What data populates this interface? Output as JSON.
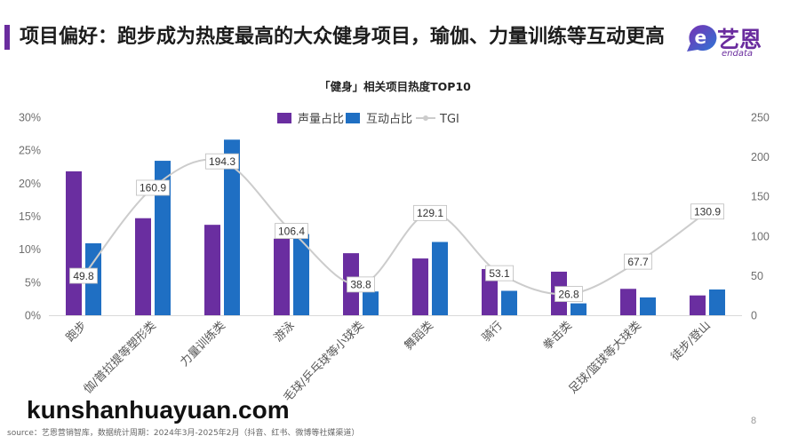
{
  "header": {
    "title": "项目偏好：跑步成为热度最高的大众健身项目，瑜伽、力量训练等互动更高",
    "accent_color": "#6a2c9e"
  },
  "logo": {
    "icon": "endata-e-icon",
    "name": "艺恩",
    "sub": "endata",
    "color": "#6a2c9e",
    "gradient": [
      "#7a2fb2",
      "#2d76d6"
    ]
  },
  "chart_data": {
    "type": "bar",
    "title": "「健身」相关项目热度TOP10",
    "categories": [
      "跑步",
      "伽/普拉提等塑形类",
      "力量训练类",
      "游泳",
      "毛球/乒乓球等小球类",
      "舞蹈类",
      "骑行",
      "拳击类",
      "足球/篮球等大球类",
      "徒步/登山"
    ],
    "series": [
      {
        "name": "声量占比",
        "type": "bar",
        "axis": "left",
        "color": "#6a2ea0",
        "values": [
          21.8,
          14.7,
          13.7,
          11.6,
          9.4,
          8.6,
          7.0,
          6.6,
          4.0,
          3.0
        ]
      },
      {
        "name": "互动占比",
        "type": "bar",
        "axis": "left",
        "color": "#1f6fc3",
        "values": [
          10.9,
          23.4,
          26.6,
          12.3,
          3.6,
          11.1,
          3.7,
          1.8,
          2.7,
          3.9
        ]
      },
      {
        "name": "TGI",
        "type": "line",
        "axis": "right",
        "color": "#cccccc",
        "data_labels": true,
        "values": [
          49.8,
          160.9,
          194.3,
          106.4,
          38.8,
          129.1,
          53.1,
          26.8,
          67.7,
          130.9
        ]
      }
    ],
    "y_left": {
      "range": [
        0,
        30
      ],
      "ticks": [
        "0%",
        "5%",
        "10%",
        "15%",
        "20%",
        "25%",
        "30%"
      ]
    },
    "y_right": {
      "range": [
        0,
        250
      ],
      "ticks": [
        "0",
        "50",
        "100",
        "150",
        "200",
        "250"
      ]
    },
    "xlabel": "",
    "ylabel": "",
    "legend": "top-center",
    "grid": false
  },
  "footer": {
    "source": "source：艺恩营销智库，数据统计周期：2024年3月-2025年2月（抖音、红书、微博等社媒渠道）",
    "page_number": "8"
  },
  "watermark": "kunshanhuayuan.com"
}
